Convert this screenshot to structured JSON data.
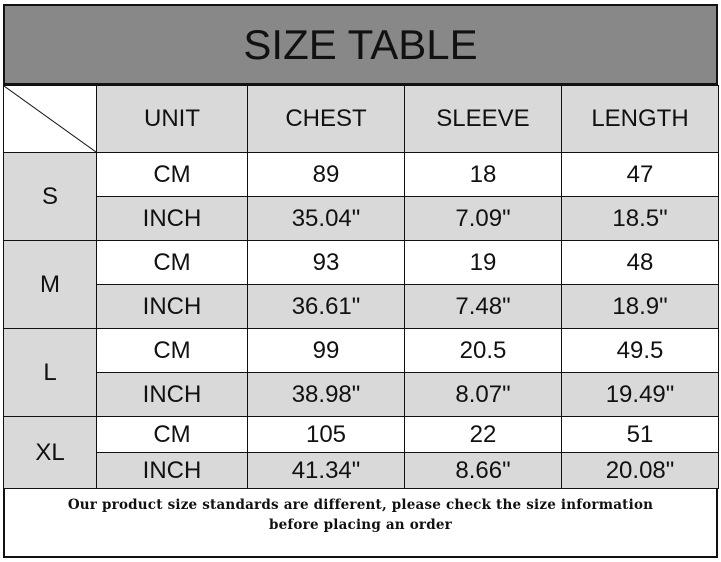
{
  "title": "SIZE TABLE",
  "headers": [
    "UNIT",
    "CHEST",
    "SLEEVE",
    "LENGTH"
  ],
  "sizes": [
    {
      "size": "S",
      "rows": [
        [
          "CM",
          "89",
          "18",
          "47"
        ],
        [
          "INCH",
          "35.04\"",
          "7.09\"",
          "18.5\""
        ]
      ]
    },
    {
      "size": "M",
      "rows": [
        [
          "CM",
          "93",
          "19",
          "48"
        ],
        [
          "INCH",
          "36.61\"",
          "7.48\"",
          "18.9\""
        ]
      ]
    },
    {
      "size": "L",
      "rows": [
        [
          "CM",
          "99",
          "20.5",
          "49.5"
        ],
        [
          "INCH",
          "38.98\"",
          "8.07\"",
          "19.49\""
        ]
      ]
    },
    {
      "size": "XL",
      "rows": [
        [
          "CM",
          "105",
          "22",
          "51"
        ],
        [
          "INCH",
          "41.34\"",
          "8.66\"",
          "20.08\""
        ]
      ]
    }
  ],
  "note": {
    "line1": "Our product size standards are different, please check the size information",
    "line2": "before placing an order"
  },
  "colors": {
    "title_bg": "#888888",
    "header_bg": "#d9d9d9",
    "inch_row_bg": "#d9d9d9"
  }
}
